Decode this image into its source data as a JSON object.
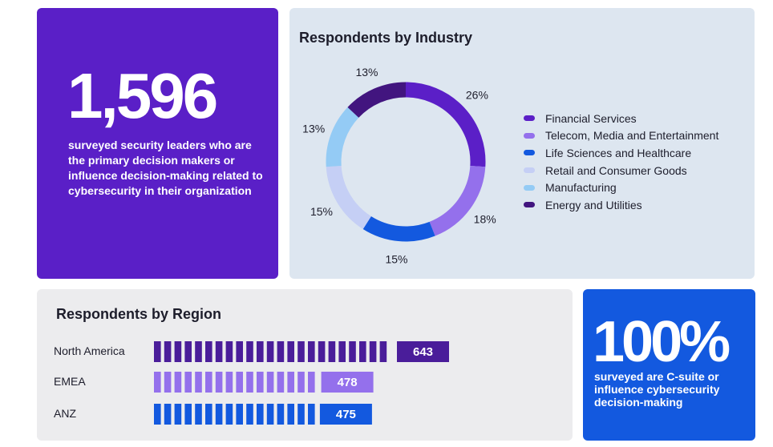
{
  "colors": {
    "stat_card_bg": "#5a1fc7",
    "industry_card_bg": "#dde6f0",
    "region_card_bg": "#ececee",
    "csuite_card_bg": "#1359df",
    "financial_services": "#5b1fc7",
    "telecom": "#9470ec",
    "life_sciences": "#1359df",
    "retail": "#c5cff5",
    "manufacturing": "#94cbf5",
    "energy": "#42157f"
  },
  "stat": {
    "number": "1,596",
    "description": "surveyed security leaders who are the primary decision makers or influence decision-making related to cybersecurity in their organization"
  },
  "csuite": {
    "number": "100%",
    "description": "surveyed are C-suite or influence cybersecurity decision-making"
  },
  "chart_data": [
    {
      "type": "pie",
      "title": "Respondents by Industry",
      "donut": true,
      "legend_position": "right",
      "categories": [
        "Financial Services",
        "Telecom, Media and Entertainment",
        "Life Sciences and Healthcare",
        "Retail and Consumer Goods",
        "Manufacturing",
        "Energy and Utilities"
      ],
      "values": [
        26,
        18,
        15,
        15,
        13,
        13
      ],
      "labels": [
        "26%",
        "18%",
        "15%",
        "15%",
        "13%",
        "13%"
      ],
      "colors": [
        "#5b1fc7",
        "#9470ec",
        "#1359df",
        "#c5cff5",
        "#94cbf5",
        "#42157f"
      ]
    },
    {
      "type": "bar",
      "orientation": "horizontal",
      "title": "Respondents by Region",
      "categories": [
        "North America",
        "EMEA",
        "ANZ"
      ],
      "values": [
        643,
        478,
        475
      ],
      "labels": [
        "643",
        "478",
        "475"
      ],
      "colors": [
        "#4a1d9a",
        "#9470ec",
        "#1359df"
      ]
    }
  ]
}
